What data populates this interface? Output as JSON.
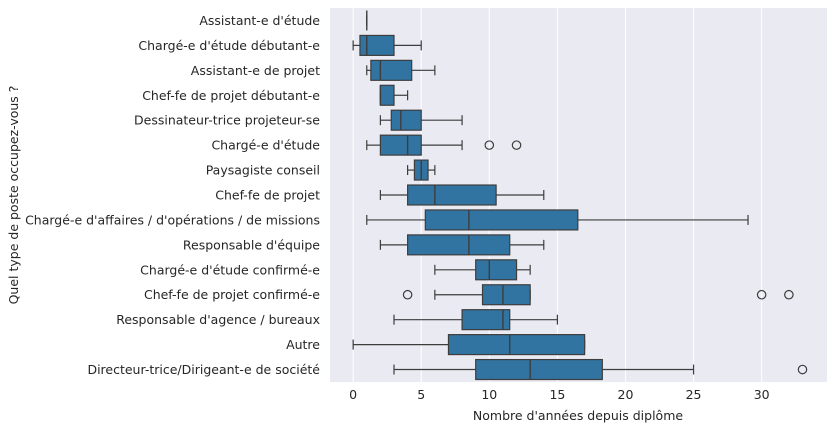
{
  "chart_data": {
    "type": "boxplot",
    "orientation": "horizontal",
    "xlabel": "Nombre d'années depuis diplôme",
    "ylabel": "Quel type de poste occupez-vous ?",
    "xlim": [
      -1.7,
      34.8
    ],
    "xticks": [
      0,
      5,
      10,
      15,
      20,
      25,
      30
    ],
    "grid": true,
    "colors": {
      "background": "#eaeaf2",
      "box_fill": "#3274a1",
      "line": "#3d3d3d",
      "grid": "#ffffff"
    },
    "categories": [
      "Assistant-e d'étude",
      "Chargé-e d'étude débutant-e",
      "Assistant-e de projet",
      "Chef-fe de projet débutant-e",
      "Dessinateur-trice projeteur-se",
      "Chargé-e d'étude",
      "Paysagiste conseil",
      "Chef-fe de projet",
      "Chargé-e d'affaires / d'opérations / de missions",
      "Responsable d'équipe",
      "Chargé-e d'étude confirmé-e",
      "Chef-fe de projet confirmé-e",
      "Responsable d'agence / bureaux",
      "Autre",
      "Directeur-trice/Dirigeant-e de société"
    ],
    "boxes": [
      {
        "whislo": 1,
        "q1": 1,
        "med": 1,
        "q3": 1,
        "whishi": 1,
        "fliers": []
      },
      {
        "whislo": 0,
        "q1": 0.5,
        "med": 1,
        "q3": 3,
        "whishi": 5,
        "fliers": []
      },
      {
        "whislo": 1,
        "q1": 1.3,
        "med": 2,
        "q3": 4.3,
        "whishi": 6,
        "fliers": []
      },
      {
        "whislo": 2,
        "q1": 2,
        "med": 2,
        "q3": 3,
        "whishi": 4,
        "fliers": []
      },
      {
        "whislo": 2,
        "q1": 2.8,
        "med": 3.5,
        "q3": 5,
        "whishi": 8,
        "fliers": []
      },
      {
        "whislo": 1,
        "q1": 2,
        "med": 4,
        "q3": 5,
        "whishi": 8,
        "fliers": [
          10,
          12
        ]
      },
      {
        "whislo": 4,
        "q1": 4.5,
        "med": 5,
        "q3": 5.5,
        "whishi": 6,
        "fliers": []
      },
      {
        "whislo": 2,
        "q1": 4,
        "med": 6,
        "q3": 10.5,
        "whishi": 14,
        "fliers": []
      },
      {
        "whislo": 1,
        "q1": 5.3,
        "med": 8.5,
        "q3": 16.5,
        "whishi": 29,
        "fliers": []
      },
      {
        "whislo": 2,
        "q1": 4,
        "med": 8.5,
        "q3": 11.5,
        "whishi": 14,
        "fliers": []
      },
      {
        "whislo": 6,
        "q1": 9,
        "med": 10,
        "q3": 12,
        "whishi": 13,
        "fliers": []
      },
      {
        "whislo": 6,
        "q1": 9.5,
        "med": 11,
        "q3": 13,
        "whishi": 13,
        "fliers": [
          4,
          30,
          32
        ]
      },
      {
        "whislo": 3,
        "q1": 8,
        "med": 11,
        "q3": 11.5,
        "whishi": 15,
        "fliers": []
      },
      {
        "whislo": 0,
        "q1": 7,
        "med": 11.5,
        "q3": 17,
        "whishi": 17,
        "fliers": []
      },
      {
        "whislo": 3,
        "q1": 9,
        "med": 13,
        "q3": 18.3,
        "whishi": 25,
        "fliers": [
          33
        ]
      }
    ]
  }
}
